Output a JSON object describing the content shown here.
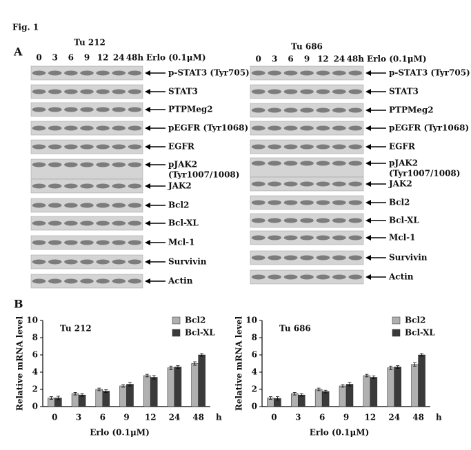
{
  "figure_label": "Fig. 1",
  "panel_a": {
    "label": "A",
    "blots": [
      {
        "cell_line": "Tu 212",
        "lanes": [
          "0",
          "3",
          "6",
          "9",
          "12",
          "24",
          "48h"
        ],
        "treatment": "Erlo (0.1μM)",
        "rows": [
          [
            "p-STAT3 (Tyr705)"
          ],
          [
            "STAT3"
          ],
          [
            "PTPMeg2"
          ],
          [
            "pEGFR (Tyr1068)"
          ],
          [
            "EGFR"
          ],
          [
            "pJAK2",
            "(Tyr1007/1008)"
          ],
          [
            "JAK2"
          ],
          [
            "Bcl2"
          ],
          [
            "Bcl-XL"
          ],
          [
            "Mcl-1"
          ],
          [
            "Survivin"
          ],
          [
            "Actin"
          ]
        ]
      },
      {
        "cell_line": "Tu 686",
        "lanes": [
          "0",
          "3",
          "6",
          "9",
          "12",
          "24",
          "48h"
        ],
        "treatment": "Erlo (0.1μM)",
        "rows": [
          [
            "p-STAT3 (Tyr705)"
          ],
          [
            "STAT3"
          ],
          [
            "PTPMeg2"
          ],
          [
            "pEGFR (Tyr1068)"
          ],
          [
            "EGFR"
          ],
          [
            "pJAK2",
            "(Tyr1007/1008)"
          ],
          [
            "JAK2"
          ],
          [
            "Bcl2"
          ],
          [
            "Bcl-XL"
          ],
          [
            "Mcl-1"
          ],
          [
            "Survivin"
          ],
          [
            "Actin"
          ]
        ]
      }
    ]
  },
  "panel_b_label": "B",
  "chart_data": [
    {
      "type": "bar",
      "title": "Tu 212",
      "ylabel": "Relative mRNA level",
      "xlabel": "Erlo (0.1μM)",
      "x_unit_label": "h",
      "categories": [
        "0",
        "3",
        "6",
        "9",
        "12",
        "24",
        "48"
      ],
      "series": [
        {
          "name": "Bcl2",
          "color": "#b0b0b0",
          "values": [
            1.0,
            1.5,
            2.0,
            2.4,
            3.6,
            4.5,
            5.0
          ],
          "errors": [
            0.15,
            0.15,
            0.15,
            0.15,
            0.15,
            0.2,
            0.2
          ]
        },
        {
          "name": "Bcl-XL",
          "color": "#3a3a3a",
          "values": [
            1.0,
            1.35,
            1.8,
            2.6,
            3.4,
            4.6,
            6.0
          ],
          "errors": [
            0.2,
            0.15,
            0.15,
            0.2,
            0.2,
            0.15,
            0.15
          ]
        }
      ],
      "ylim": [
        0,
        10
      ],
      "yticks": [
        0,
        2,
        4,
        6,
        8,
        10
      ],
      "legend": "top-right"
    },
    {
      "type": "bar",
      "title": "Tu 686",
      "ylabel": "Relative mRNA level",
      "xlabel": "Erlo (0.1μM)",
      "x_unit_label": "h",
      "categories": [
        "0",
        "3",
        "6",
        "9",
        "12",
        "24",
        "48"
      ],
      "series": [
        {
          "name": "Bcl2",
          "color": "#b0b0b0",
          "values": [
            1.0,
            1.5,
            2.0,
            2.4,
            3.6,
            4.5,
            4.9
          ],
          "errors": [
            0.15,
            0.15,
            0.15,
            0.15,
            0.15,
            0.2,
            0.2
          ]
        },
        {
          "name": "Bcl-XL",
          "color": "#3a3a3a",
          "values": [
            0.95,
            1.35,
            1.75,
            2.6,
            3.4,
            4.6,
            6.0
          ],
          "errors": [
            0.2,
            0.15,
            0.15,
            0.2,
            0.15,
            0.15,
            0.15
          ]
        }
      ],
      "ylim": [
        0,
        10
      ],
      "yticks": [
        0,
        2,
        4,
        6,
        8,
        10
      ],
      "legend": "top-right"
    }
  ]
}
